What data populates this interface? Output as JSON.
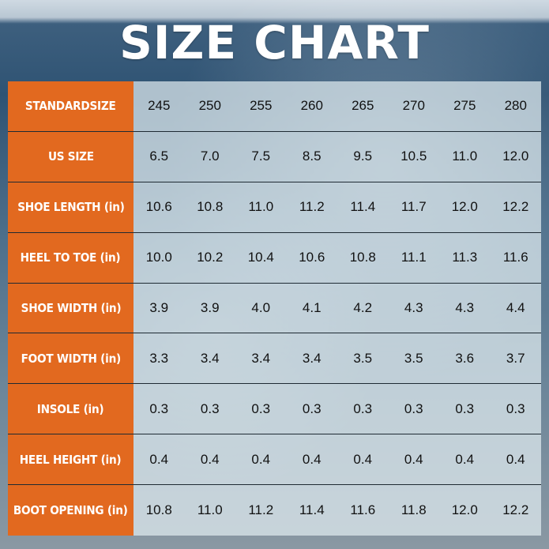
{
  "title": "SIZE CHART",
  "rows": [
    {
      "label": "STANDARDSIZE",
      "values": [
        "245",
        "250",
        "255",
        "260",
        "265",
        "270",
        "275",
        "280"
      ]
    },
    {
      "label": "US SIZE",
      "values": [
        "6.5",
        "7.0",
        "7.5",
        "8.5",
        "9.5",
        "10.5",
        "11.0",
        "12.0"
      ]
    },
    {
      "label": "SHOE LENGTH (in)",
      "values": [
        "10.6",
        "10.8",
        "11.0",
        "11.2",
        "11.4",
        "11.7",
        "12.0",
        "12.2"
      ]
    },
    {
      "label": "HEEL TO TOE (in)",
      "values": [
        "10.0",
        "10.2",
        "10.4",
        "10.6",
        "10.8",
        "11.1",
        "11.3",
        "11.6"
      ]
    },
    {
      "label": "SHOE WIDTH (in)",
      "values": [
        "3.9",
        "3.9",
        "4.0",
        "4.1",
        "4.2",
        "4.3",
        "4.3",
        "4.4"
      ]
    },
    {
      "label": "FOOT WIDTH (in)",
      "values": [
        "3.3",
        "3.4",
        "3.4",
        "3.4",
        "3.5",
        "3.5",
        "3.6",
        "3.7"
      ]
    },
    {
      "label": "INSOLE (in)",
      "values": [
        "0.3",
        "0.3",
        "0.3",
        "0.3",
        "0.3",
        "0.3",
        "0.3",
        "0.3"
      ]
    },
    {
      "label": "HEEL HEIGHT (in)",
      "values": [
        "0.4",
        "0.4",
        "0.4",
        "0.4",
        "0.4",
        "0.4",
        "0.4",
        "0.4"
      ]
    },
    {
      "label": "BOOT OPENING (in)",
      "values": [
        "10.8",
        "11.0",
        "11.2",
        "11.4",
        "11.6",
        "11.8",
        "12.0",
        "12.2"
      ]
    }
  ],
  "colors": {
    "label_bg": "#e2691f",
    "title": "#ffffff"
  }
}
